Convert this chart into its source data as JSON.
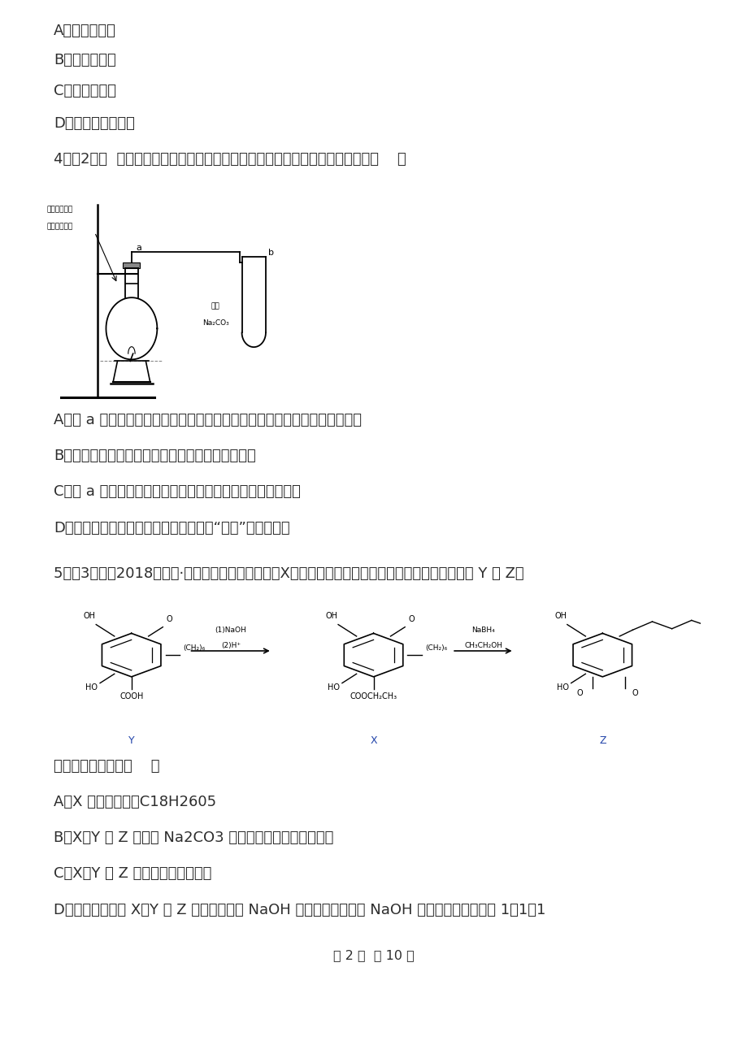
{
  "bg": "#ffffff",
  "text_color": "#2d2d2d",
  "figsize": [
    9.2,
    13.02
  ],
  "dpi": 100,
  "lm": 0.072,
  "q3_options": [
    "A．只有（甲）",
    "B．只有（乙）",
    "C．只有（丙）",
    "D．除（乙）均可以"
  ],
  "q4_header": "4．（2分）  在实验室可以用图所示的装置制取乙酸乙酯，下列说法不正确的是（    ）",
  "q4_options": [
    "A．向 a 试管中先加入浓硫酸，然后边摇动试管边慢慢加入乙醇，再加入乙酸",
    "B．饱和碳酸镃溶液可以除去乙酸乙酯中混有的乙酸",
    "C．向 a 试管中加入几块碎瓷片的作用是防止加热时液体暴永",
    "D．将制得的乙酸乙酯分离出来，应采用“分液”的实验操作"
  ],
  "q5_header": "5．（3分）（2018高三下·城中开学考）真菌聚酶（X）具有多种生物活性，一定条件下可分别转化为 Y 和 Z。",
  "q5_sub": "下列说法正确的是（    ）",
  "q5_options": [
    "A．X 的分子式为：C18H2605",
    "B．X、Y 和 Z 均能与 Na2CO3 溶液反应，且均有气体生成",
    "C．X、Y 和 Z 中均不含手性碗原子",
    "D．等物质的量的 X、Y 和 Z 分别与足量的 NaOH 溶液反应，消耗的 NaOH 溶液物质的量之比为 1：1：1"
  ],
  "footer": "第 2 页  共 10 页"
}
